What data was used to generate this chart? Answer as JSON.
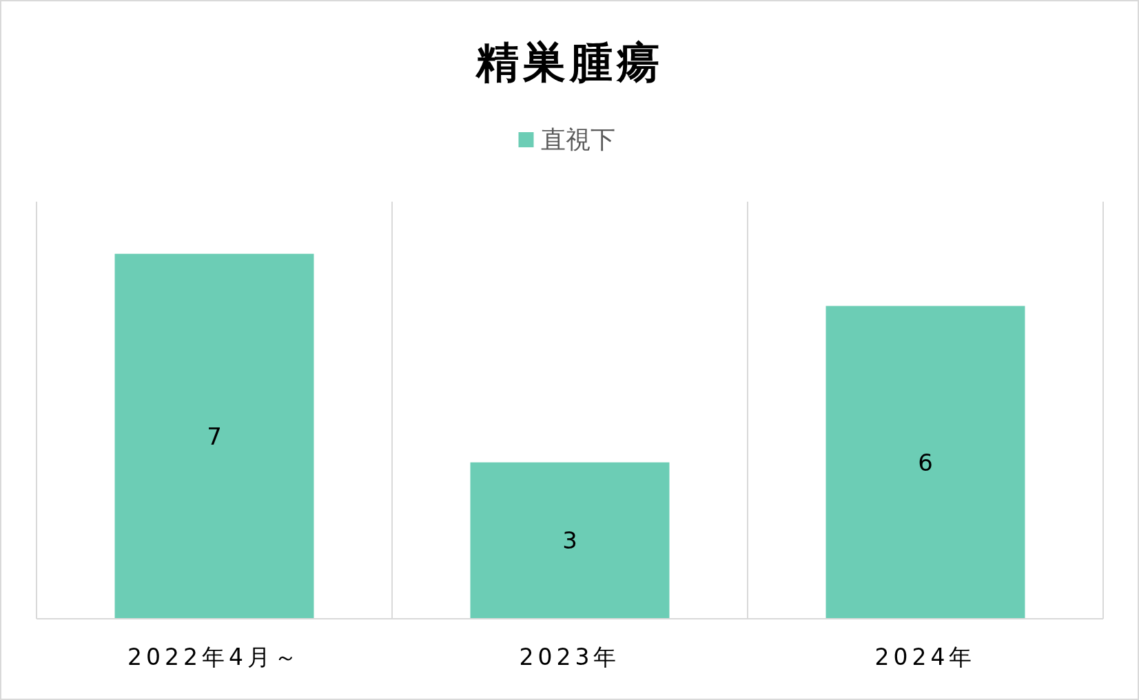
{
  "chart_data": {
    "type": "bar",
    "title": "精巣腫瘍",
    "categories": [
      "2022年4月～",
      "2023年",
      "2024年"
    ],
    "series": [
      {
        "name": "直視下",
        "color": "#6ccdb5",
        "values": [
          7,
          3,
          6
        ]
      }
    ],
    "ylim": [
      0,
      8
    ],
    "data_labels": true,
    "grid": "x",
    "legend": "top"
  }
}
